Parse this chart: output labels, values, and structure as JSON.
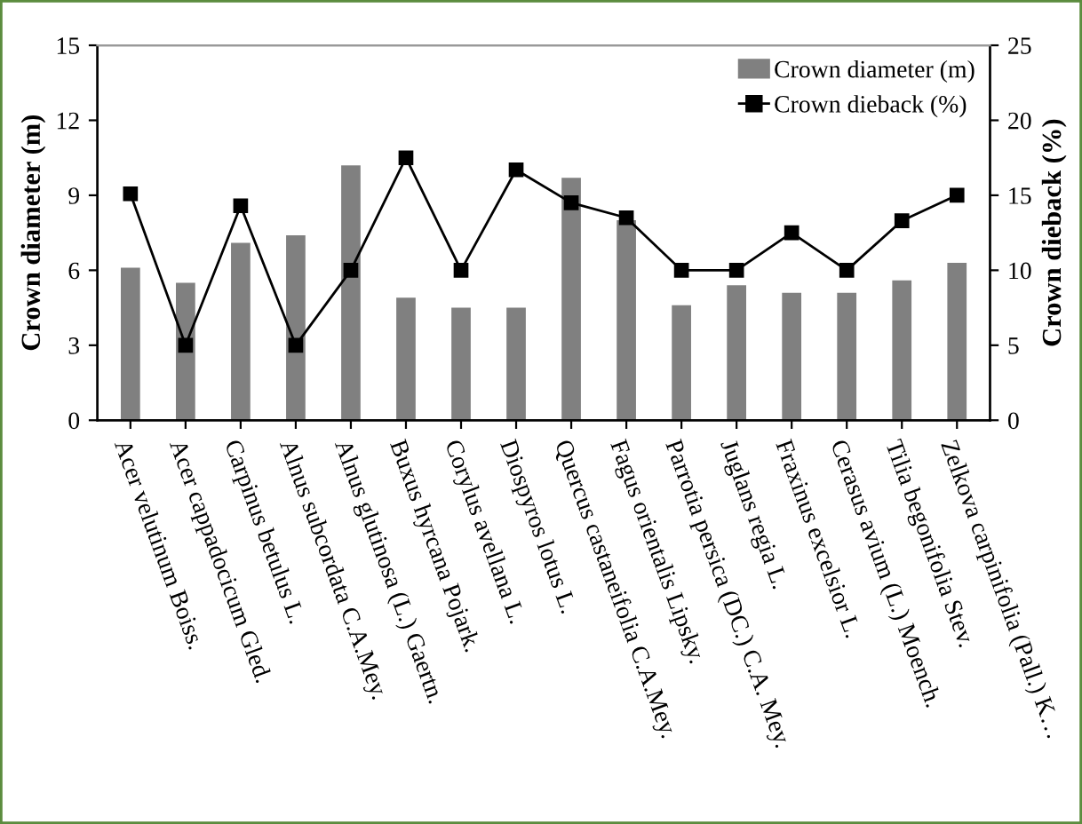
{
  "chart_data": {
    "type": "bar",
    "ylabel": "Crown diameter (m)",
    "y2label": "Crown dieback (%)",
    "categories": [
      "Acer velutinum Boiss.",
      "Acer cappadocicum Gled.",
      "Carpinus betulus L.",
      "Alnus subcordata C.A.Mey.",
      "Alnus glutinosa (L.) Gaertn.",
      "Buxus hyrcana Pojark.",
      "Corylus avellana L.",
      "Diospyros lotus L.",
      "Quercus castaneifolia C.A.Mey.",
      "Fagus orientalis Lipsky.",
      "Parrotia persica (DC.) C.A. Mey.",
      "Juglans regia L.",
      "Fraxinus excelsior L.",
      "Cerasus avium (L.) Moench.",
      "Tilia begonifolia Stev.",
      "Zelkova carpinifolia (Pall.) K…"
    ],
    "series": [
      {
        "name": "Crown diameter (m)",
        "color": "#808080",
        "values": [
          6.1,
          5.5,
          7.1,
          7.4,
          10.2,
          4.9,
          4.5,
          4.5,
          9.7,
          8.0,
          4.6,
          5.4,
          5.1,
          5.1,
          5.6,
          6.3
        ]
      },
      {
        "name": "Crown dieback (%)",
        "type": "line",
        "axis": "y2",
        "color": "#000000",
        "marker": "square",
        "values": [
          15.1,
          5,
          14.3,
          5,
          10,
          17.5,
          10,
          16.7,
          14.5,
          13.5,
          10,
          10,
          12.5,
          10,
          13.3,
          15
        ]
      }
    ],
    "ylim": [
      0,
      15
    ],
    "yticks": [
      0,
      3,
      6,
      9,
      12,
      15
    ],
    "y2lim": [
      0,
      25
    ],
    "y2ticks": [
      0,
      5,
      10,
      15,
      20,
      25
    ],
    "grid": false,
    "legend": "top right"
  }
}
